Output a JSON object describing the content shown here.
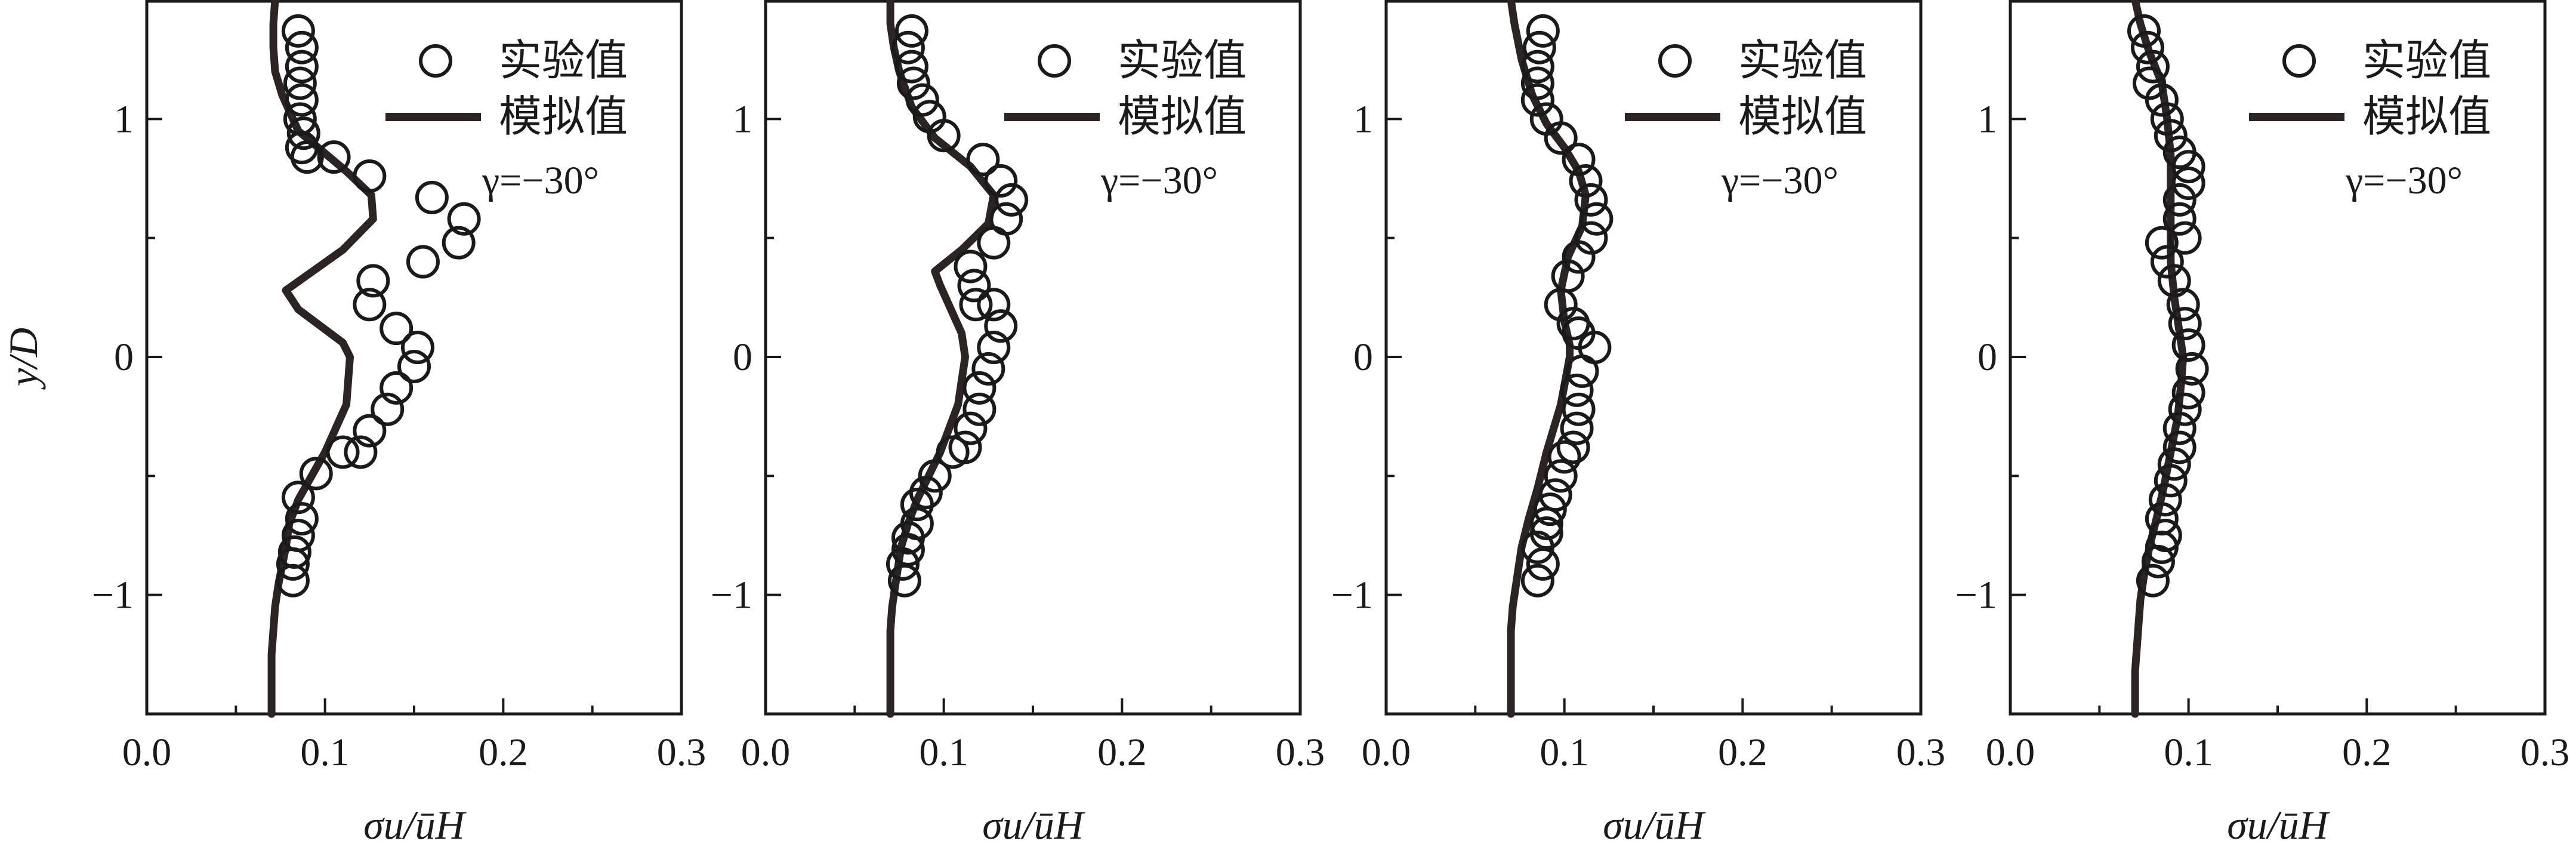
{
  "chart_data": [
    {
      "type": "line",
      "xlim": [
        0.0,
        0.3
      ],
      "ylim": [
        -1.5,
        1.5
      ],
      "x_ticks": [
        "0.0",
        "0.1",
        "0.2",
        "0.3"
      ],
      "y_ticks": [
        "−1",
        "0",
        "1"
      ],
      "xlabel": "σu/ūH",
      "ylabel": "y/D",
      "legend": {
        "placement": "top-right",
        "experiment": "实验值",
        "simulation": "模拟值"
      },
      "annotation": "γ=−30°",
      "series": [
        {
          "name": "实验值",
          "marker": "open-circle",
          "x": [
            0.085,
            0.087,
            0.087,
            0.086,
            0.087,
            0.086,
            0.088,
            0.087,
            0.09,
            0.105,
            0.125,
            0.16,
            0.178,
            0.175,
            0.155,
            0.127,
            0.125,
            0.14,
            0.152,
            0.15,
            0.14,
            0.135,
            0.125,
            0.12,
            0.11,
            0.095,
            0.085,
            0.087,
            0.085,
            0.083,
            0.082,
            0.082
          ],
          "y": [
            1.37,
            1.3,
            1.22,
            1.15,
            1.08,
            1.0,
            0.94,
            0.88,
            0.84,
            0.84,
            0.76,
            0.67,
            0.58,
            0.48,
            0.4,
            0.32,
            0.22,
            0.12,
            0.04,
            -0.04,
            -0.13,
            -0.22,
            -0.31,
            -0.4,
            -0.4,
            -0.49,
            -0.59,
            -0.68,
            -0.75,
            -0.82,
            -0.87,
            -0.94
          ]
        },
        {
          "name": "模拟值",
          "marker": "line",
          "x": [
            0.072,
            0.071,
            0.071,
            0.072,
            0.076,
            0.085,
            0.112,
            0.126,
            0.127,
            0.11,
            0.078,
            0.085,
            0.11,
            0.114,
            0.112,
            0.1,
            0.085,
            0.08,
            0.078,
            0.074,
            0.072,
            0.071,
            0.07,
            0.07,
            0.07,
            0.07
          ],
          "y": [
            1.5,
            1.4,
            1.3,
            1.2,
            1.1,
            0.95,
            0.78,
            0.68,
            0.58,
            0.45,
            0.28,
            0.2,
            0.06,
            0.0,
            -0.2,
            -0.4,
            -0.6,
            -0.7,
            -0.8,
            -0.95,
            -1.05,
            -1.15,
            -1.25,
            -1.35,
            -1.45,
            -1.5
          ]
        }
      ]
    },
    {
      "type": "line",
      "xlim": [
        0.0,
        0.3
      ],
      "ylim": [
        -1.5,
        1.5
      ],
      "x_ticks": [
        "0.0",
        "0.1",
        "0.2",
        "0.3"
      ],
      "y_ticks": [
        "−1",
        "0",
        "1"
      ],
      "xlabel": "σu/ūH",
      "ylabel": "",
      "legend": {
        "placement": "top-right",
        "experiment": "实验值",
        "simulation": "模拟值"
      },
      "annotation": "γ=−30°",
      "series": [
        {
          "name": "实验值",
          "marker": "open-circle",
          "x": [
            0.082,
            0.08,
            0.082,
            0.083,
            0.088,
            0.092,
            0.1,
            0.122,
            0.132,
            0.138,
            0.135,
            0.128,
            0.115,
            0.117,
            0.118,
            0.128,
            0.132,
            0.128,
            0.125,
            0.12,
            0.12,
            0.115,
            0.112,
            0.105,
            0.095,
            0.09,
            0.085,
            0.085,
            0.08,
            0.08,
            0.077,
            0.078
          ],
          "y": [
            1.37,
            1.3,
            1.22,
            1.15,
            1.08,
            1.01,
            0.93,
            0.83,
            0.74,
            0.66,
            0.58,
            0.48,
            0.38,
            0.3,
            0.22,
            0.22,
            0.13,
            0.04,
            -0.05,
            -0.13,
            -0.22,
            -0.3,
            -0.38,
            -0.4,
            -0.5,
            -0.57,
            -0.62,
            -0.7,
            -0.76,
            -0.81,
            -0.87,
            -0.94
          ]
        },
        {
          "name": "模拟值",
          "marker": "line",
          "x": [
            0.07,
            0.07,
            0.072,
            0.075,
            0.082,
            0.095,
            0.115,
            0.128,
            0.125,
            0.11,
            0.095,
            0.098,
            0.11,
            0.112,
            0.108,
            0.098,
            0.085,
            0.08,
            0.076,
            0.073,
            0.071,
            0.07,
            0.07,
            0.07,
            0.07,
            0.07
          ],
          "y": [
            1.5,
            1.4,
            1.3,
            1.2,
            1.05,
            0.92,
            0.8,
            0.68,
            0.56,
            0.45,
            0.36,
            0.3,
            0.1,
            0.0,
            -0.2,
            -0.4,
            -0.6,
            -0.7,
            -0.8,
            -0.95,
            -1.05,
            -1.15,
            -1.25,
            -1.35,
            -1.45,
            -1.5
          ]
        }
      ]
    },
    {
      "type": "line",
      "xlim": [
        0.0,
        0.3
      ],
      "ylim": [
        -1.5,
        1.5
      ],
      "x_ticks": [
        "0.0",
        "0.1",
        "0.2",
        "0.3"
      ],
      "y_ticks": [
        "−1",
        "0",
        "1"
      ],
      "xlabel": "σu/ūH",
      "ylabel": "",
      "legend": {
        "placement": "top-right",
        "experiment": "实验值",
        "simulation": "模拟值"
      },
      "annotation": "γ=−30°",
      "series": [
        {
          "name": "实验值",
          "marker": "open-circle",
          "x": [
            0.088,
            0.086,
            0.085,
            0.085,
            0.085,
            0.09,
            0.098,
            0.108,
            0.112,
            0.115,
            0.118,
            0.115,
            0.108,
            0.102,
            0.098,
            0.105,
            0.108,
            0.117,
            0.11,
            0.107,
            0.108,
            0.107,
            0.105,
            0.1,
            0.098,
            0.095,
            0.092,
            0.09,
            0.09,
            0.085,
            0.088,
            0.085
          ],
          "y": [
            1.37,
            1.3,
            1.22,
            1.15,
            1.08,
            1.0,
            0.92,
            0.83,
            0.74,
            0.66,
            0.58,
            0.5,
            0.42,
            0.34,
            0.22,
            0.14,
            0.1,
            0.04,
            -0.06,
            -0.14,
            -0.22,
            -0.3,
            -0.38,
            -0.42,
            -0.5,
            -0.58,
            -0.64,
            -0.7,
            -0.74,
            -0.8,
            -0.87,
            -0.94
          ]
        },
        {
          "name": "模拟值",
          "marker": "line",
          "x": [
            0.07,
            0.072,
            0.076,
            0.082,
            0.09,
            0.1,
            0.108,
            0.112,
            0.11,
            0.102,
            0.098,
            0.1,
            0.103,
            0.103,
            0.098,
            0.09,
            0.085,
            0.08,
            0.076,
            0.073,
            0.071,
            0.07,
            0.07,
            0.07,
            0.07,
            0.07
          ],
          "y": [
            1.5,
            1.4,
            1.25,
            1.1,
            0.98,
            0.88,
            0.78,
            0.68,
            0.55,
            0.42,
            0.28,
            0.15,
            0.05,
            0.0,
            -0.2,
            -0.4,
            -0.55,
            -0.68,
            -0.8,
            -0.95,
            -1.05,
            -1.15,
            -1.25,
            -1.35,
            -1.45,
            -1.5
          ]
        }
      ]
    },
    {
      "type": "line",
      "xlim": [
        0.0,
        0.3
      ],
      "ylim": [
        -1.5,
        1.5
      ],
      "x_ticks": [
        "0.0",
        "0.1",
        "0.2",
        "0.3"
      ],
      "y_ticks": [
        "−1",
        "0",
        "1"
      ],
      "xlabel": "σu/ūH",
      "ylabel": "",
      "legend": {
        "placement": "top-right",
        "experiment": "实验值",
        "simulation": "模拟值"
      },
      "annotation": "γ=−30°",
      "series": [
        {
          "name": "实验值",
          "marker": "open-circle",
          "x": [
            0.075,
            0.077,
            0.08,
            0.078,
            0.085,
            0.088,
            0.09,
            0.095,
            0.1,
            0.1,
            0.095,
            0.095,
            0.098,
            0.085,
            0.088,
            0.092,
            0.097,
            0.098,
            0.1,
            0.102,
            0.1,
            0.098,
            0.095,
            0.095,
            0.092,
            0.09,
            0.087,
            0.085,
            0.087,
            0.085,
            0.083,
            0.08
          ],
          "y": [
            1.37,
            1.3,
            1.22,
            1.15,
            1.08,
            1.0,
            0.93,
            0.86,
            0.8,
            0.73,
            0.66,
            0.58,
            0.5,
            0.48,
            0.4,
            0.32,
            0.22,
            0.14,
            0.05,
            -0.05,
            -0.15,
            -0.22,
            -0.3,
            -0.38,
            -0.45,
            -0.52,
            -0.6,
            -0.68,
            -0.75,
            -0.8,
            -0.86,
            -0.94
          ]
        },
        {
          "name": "模拟值",
          "marker": "line",
          "x": [
            0.07,
            0.073,
            0.078,
            0.085,
            0.088,
            0.09,
            0.09,
            0.09,
            0.09,
            0.092,
            0.095,
            0.097,
            0.096,
            0.094,
            0.09,
            0.086,
            0.082,
            0.078,
            0.075,
            0.073,
            0.072,
            0.071,
            0.07,
            0.07,
            0.07
          ],
          "y": [
            1.5,
            1.4,
            1.28,
            1.15,
            1.0,
            0.85,
            0.7,
            0.55,
            0.4,
            0.25,
            0.1,
            0.0,
            -0.1,
            -0.25,
            -0.4,
            -0.55,
            -0.68,
            -0.8,
            -0.92,
            -1.02,
            -1.12,
            -1.22,
            -1.32,
            -1.42,
            -1.5
          ]
        }
      ]
    }
  ]
}
